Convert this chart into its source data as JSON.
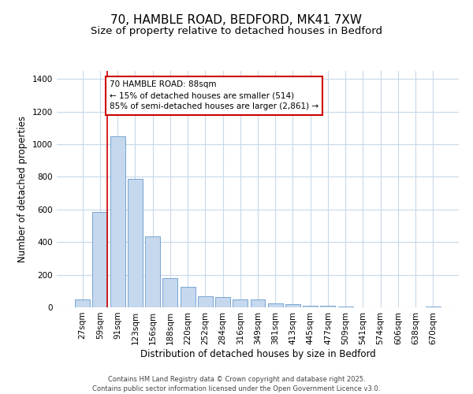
{
  "title1": "70, HAMBLE ROAD, BEDFORD, MK41 7XW",
  "title2": "Size of property relative to detached houses in Bedford",
  "xlabel": "Distribution of detached houses by size in Bedford",
  "ylabel": "Number of detached properties",
  "categories": [
    "27sqm",
    "59sqm",
    "91sqm",
    "123sqm",
    "156sqm",
    "188sqm",
    "220sqm",
    "252sqm",
    "284sqm",
    "316sqm",
    "349sqm",
    "381sqm",
    "413sqm",
    "445sqm",
    "477sqm",
    "509sqm",
    "541sqm",
    "574sqm",
    "606sqm",
    "638sqm",
    "670sqm"
  ],
  "values": [
    47,
    585,
    1050,
    790,
    435,
    178,
    128,
    68,
    65,
    47,
    47,
    25,
    20,
    12,
    10,
    7,
    0,
    0,
    0,
    0,
    7
  ],
  "bar_color": "#c5d8ee",
  "bar_edge_color": "#6699cc",
  "vline_color": "#cc0000",
  "annotation_text": "70 HAMBLE ROAD: 88sqm\n← 15% of detached houses are smaller (514)\n85% of semi-detached houses are larger (2,861) →",
  "annotation_box_color": "#ffffff",
  "annotation_box_edge": "#cc0000",
  "ylim": [
    0,
    1450
  ],
  "yticks": [
    0,
    200,
    400,
    600,
    800,
    1000,
    1200,
    1400
  ],
  "fig_bg_color": "#ffffff",
  "plot_bg_color": "#ffffff",
  "grid_color": "#c8d8e8",
  "title1_fontsize": 11,
  "title2_fontsize": 9.5,
  "axis_label_fontsize": 8.5,
  "tick_fontsize": 7.5,
  "annotation_fontsize": 7.5,
  "footer": "Contains HM Land Registry data © Crown copyright and database right 2025.\nContains public sector information licensed under the Open Government Licence v3.0.",
  "footer_fontsize": 6.0
}
